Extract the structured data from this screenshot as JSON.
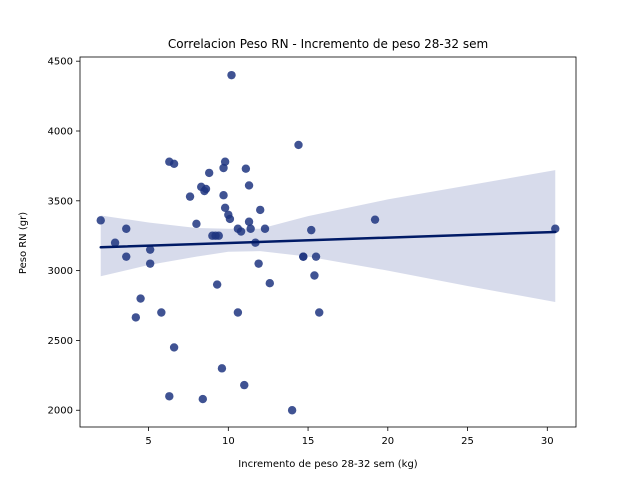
{
  "chart_data": {
    "type": "scatter",
    "title": "Correlacion Peso RN - Incremento de peso 28-32 sem",
    "xlabel": "Incremento de peso 28-32 sem (kg)",
    "ylabel": "Peso RN (gr)",
    "xlim": [
      0.7,
      31.8
    ],
    "ylim": [
      1880,
      4530
    ],
    "xticks": [
      5,
      10,
      15,
      20,
      25,
      30
    ],
    "yticks": [
      2000,
      2500,
      3000,
      3500,
      4000,
      4500
    ],
    "grid": false,
    "colors": {
      "points": "#1f3580",
      "line": "#001a66",
      "band": "#cdd2e6"
    },
    "points": [
      [
        2.0,
        3360
      ],
      [
        2.9,
        3200
      ],
      [
        3.6,
        3300
      ],
      [
        3.6,
        3100
      ],
      [
        4.2,
        2665
      ],
      [
        4.5,
        2800
      ],
      [
        5.1,
        3150
      ],
      [
        5.1,
        3050
      ],
      [
        5.8,
        2700
      ],
      [
        6.3,
        3780
      ],
      [
        6.3,
        2100
      ],
      [
        6.6,
        3765
      ],
      [
        6.6,
        2450
      ],
      [
        7.6,
        3530
      ],
      [
        8.0,
        3335
      ],
      [
        8.3,
        3600
      ],
      [
        8.4,
        2080
      ],
      [
        8.5,
        3570
      ],
      [
        8.6,
        3585
      ],
      [
        8.8,
        3700
      ],
      [
        9.0,
        3250
      ],
      [
        9.2,
        3250
      ],
      [
        9.3,
        2900
      ],
      [
        9.4,
        3250
      ],
      [
        9.6,
        2300
      ],
      [
        9.7,
        3540
      ],
      [
        9.7,
        3735
      ],
      [
        9.8,
        3780
      ],
      [
        9.8,
        3450
      ],
      [
        10.0,
        3400
      ],
      [
        10.1,
        3370
      ],
      [
        10.2,
        4400
      ],
      [
        10.6,
        2700
      ],
      [
        10.6,
        3300
      ],
      [
        10.8,
        3280
      ],
      [
        11.0,
        2180
      ],
      [
        11.1,
        3730
      ],
      [
        11.3,
        3610
      ],
      [
        11.3,
        3350
      ],
      [
        11.4,
        3300
      ],
      [
        11.7,
        3200
      ],
      [
        11.9,
        3050
      ],
      [
        12.0,
        3435
      ],
      [
        12.3,
        3300
      ],
      [
        12.6,
        2910
      ],
      [
        14.0,
        2000
      ],
      [
        14.4,
        3900
      ],
      [
        14.7,
        3100
      ],
      [
        14.7,
        3100
      ],
      [
        15.2,
        3290
      ],
      [
        15.4,
        2965
      ],
      [
        15.5,
        3100
      ],
      [
        15.7,
        2700
      ],
      [
        19.2,
        3365
      ],
      [
        30.5,
        3300
      ]
    ],
    "regression": {
      "x": [
        2.0,
        30.5
      ],
      "y": [
        3167,
        3277
      ]
    },
    "confidence_band": {
      "x": [
        2.0,
        5.0,
        8.0,
        10.0,
        12.0,
        15.0,
        20.0,
        25.0,
        30.5
      ],
      "lower": [
        2960,
        3040,
        3100,
        3135,
        3140,
        3100,
        3000,
        2890,
        2775
      ],
      "upper": [
        3395,
        3345,
        3305,
        3300,
        3300,
        3390,
        3510,
        3610,
        3720
      ]
    }
  }
}
